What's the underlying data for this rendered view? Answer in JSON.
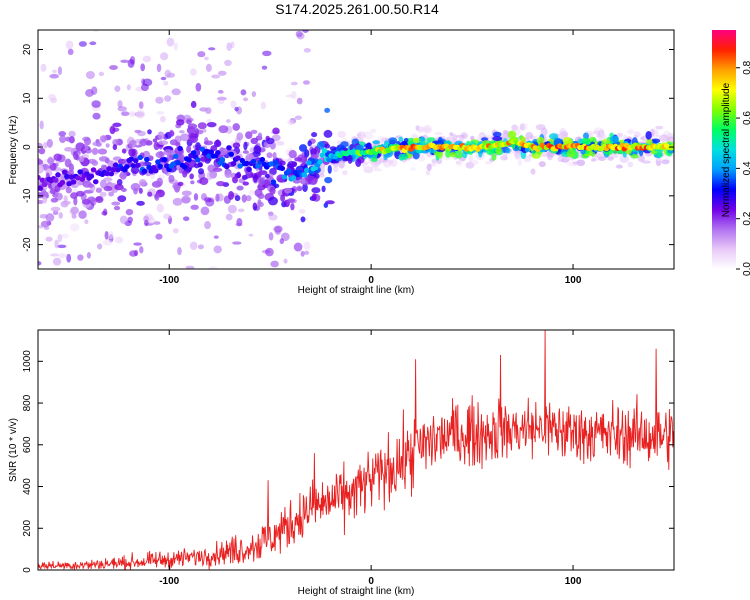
{
  "title": "S174.2025.261.00.50.R14",
  "chart_data": [
    {
      "type": "heatmap",
      "panel": "spectrogram",
      "xlabel": "Height of straight line (km)",
      "ylabel": "Frequency (Hz)",
      "xlim": [
        -165,
        150
      ],
      "ylim": [
        -25,
        24
      ],
      "xticks": [
        -100,
        0,
        100
      ],
      "xtick_labels": [
        "-100",
        "0",
        "100"
      ],
      "yticks": [
        -20,
        -10,
        0,
        10,
        20
      ],
      "ytick_labels": [
        "-20",
        "-10",
        "0",
        "10",
        "20"
      ],
      "ridge": {
        "description": "dominant frequency track (approx.)",
        "x": [
          -165,
          -140,
          -120,
          -100,
          -80,
          -60,
          -40,
          -30,
          -20,
          -10,
          0,
          20,
          40,
          60,
          70,
          80,
          100,
          120,
          150
        ],
        "freq": [
          -7,
          -6,
          -4,
          -3,
          -2,
          -3,
          -6,
          -4,
          -2,
          -1,
          -1,
          0,
          0,
          0,
          1,
          0,
          0,
          0,
          0
        ],
        "amplitude": [
          0.25,
          0.3,
          0.35,
          0.35,
          0.35,
          0.35,
          0.4,
          0.45,
          0.5,
          0.6,
          0.7,
          0.85,
          0.85,
          0.8,
          0.8,
          0.85,
          0.85,
          0.85,
          0.85
        ]
      },
      "colorbar": {
        "label": "Normalized spectral amplitude",
        "range": [
          0,
          0.95
        ],
        "ticks": [
          0.0,
          0.2,
          0.4,
          0.6,
          0.8
        ],
        "tick_labels": [
          "0.0",
          "0.2",
          "0.4",
          "0.6",
          "0.8"
        ],
        "colors": [
          "#ffffff",
          "#e8c8f8",
          "#b070f0",
          "#7000e8",
          "#0000ff",
          "#00a0ff",
          "#00e0e0",
          "#00ff60",
          "#80ff00",
          "#ffff00",
          "#ffa000",
          "#ff2000",
          "#ff0080"
        ]
      }
    },
    {
      "type": "line",
      "panel": "snr",
      "xlabel": "Height of straight line (km)",
      "ylabel": "SNR (10 * v/v)",
      "xlim": [
        -165,
        150
      ],
      "ylim": [
        0,
        1150
      ],
      "xticks": [
        -100,
        0,
        100
      ],
      "xtick_labels": [
        "-100",
        "0",
        "100"
      ],
      "yticks": [
        0,
        200,
        400,
        600,
        800,
        1000
      ],
      "ytick_labels": [
        "0",
        "200",
        "400",
        "600",
        "800",
        "1000"
      ],
      "color": "#e82020",
      "trend": {
        "x": [
          -165,
          -140,
          -120,
          -100,
          -80,
          -60,
          -50,
          -40,
          -30,
          -20,
          -10,
          0,
          10,
          20,
          30,
          40,
          60,
          80,
          100,
          120,
          150
        ],
        "snr": [
          20,
          25,
          35,
          50,
          70,
          110,
          150,
          220,
          290,
          330,
          360,
          430,
          490,
          550,
          620,
          650,
          660,
          680,
          660,
          650,
          640
        ]
      },
      "spread": {
        "x": [
          -165,
          -80,
          -40,
          0,
          20,
          60,
          150
        ],
        "amp": [
          20,
          60,
          140,
          180,
          200,
          180,
          170
        ]
      },
      "peaks": [
        {
          "x": 86,
          "snr": 1150
        },
        {
          "x": 141,
          "snr": 1060
        },
        {
          "x": 64,
          "snr": 1030
        },
        {
          "x": 22,
          "snr": 1010
        },
        {
          "x": -51,
          "snr": 430
        },
        {
          "x": -28,
          "snr": 560
        }
      ]
    }
  ]
}
